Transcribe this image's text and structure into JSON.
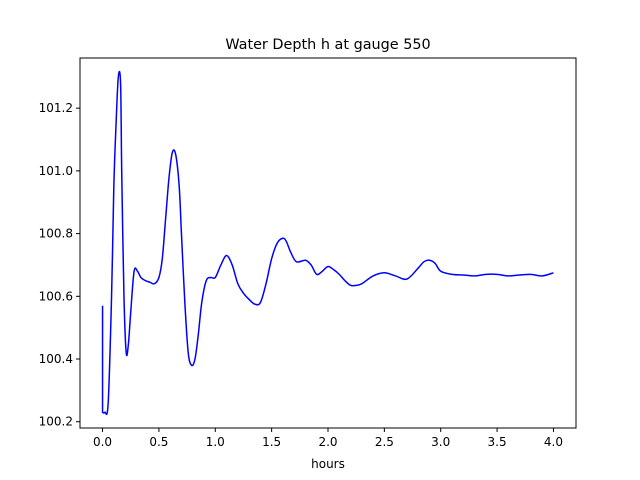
{
  "chart_data": {
    "type": "line",
    "title": "Water Depth h at gauge 550",
    "xlabel": "hours",
    "ylabel": "",
    "xlim": [
      -0.2,
      4.2
    ],
    "ylim": [
      100.18,
      101.36
    ],
    "xticks": [
      0.0,
      0.5,
      1.0,
      1.5,
      2.0,
      2.5,
      3.0,
      3.5,
      4.0
    ],
    "xtick_labels": [
      "0.0",
      "0.5",
      "1.0",
      "1.5",
      "2.0",
      "2.5",
      "3.0",
      "3.5",
      "4.0"
    ],
    "yticks": [
      100.2,
      100.4,
      100.6,
      100.8,
      101.0,
      101.2
    ],
    "ytick_labels": [
      "100.2",
      "100.4",
      "100.6",
      "100.8",
      "101.0",
      "101.2"
    ],
    "grid": false,
    "legend": "none",
    "series": [
      {
        "color": "#0000ff",
        "x": [
          0.0,
          0.0,
          0.02,
          0.05,
          0.08,
          0.1,
          0.12,
          0.14,
          0.16,
          0.17,
          0.19,
          0.21,
          0.23,
          0.25,
          0.28,
          0.31,
          0.34,
          0.38,
          0.42,
          0.46,
          0.5,
          0.53,
          0.56,
          0.59,
          0.62,
          0.65,
          0.68,
          0.7,
          0.73,
          0.76,
          0.79,
          0.82,
          0.85,
          0.88,
          0.92,
          0.96,
          1.0,
          1.05,
          1.1,
          1.15,
          1.2,
          1.25,
          1.3,
          1.35,
          1.4,
          1.45,
          1.5,
          1.55,
          1.6,
          1.63,
          1.67,
          1.72,
          1.8,
          1.85,
          1.9,
          1.95,
          2.0,
          2.05,
          2.1,
          2.15,
          2.2,
          2.25,
          2.3,
          2.4,
          2.5,
          2.6,
          2.7,
          2.8,
          2.85,
          2.9,
          2.95,
          3.0,
          3.1,
          3.2,
          3.3,
          3.4,
          3.5,
          3.6,
          3.7,
          3.8,
          3.9,
          4.0
        ],
        "y": [
          100.57,
          100.23,
          100.23,
          100.26,
          100.6,
          100.95,
          101.15,
          101.3,
          101.28,
          101.0,
          100.6,
          100.42,
          100.45,
          100.55,
          100.68,
          100.68,
          100.66,
          100.65,
          100.645,
          100.64,
          100.66,
          100.72,
          100.85,
          100.98,
          101.06,
          101.05,
          100.95,
          100.8,
          100.58,
          100.42,
          100.38,
          100.4,
          100.48,
          100.58,
          100.65,
          100.66,
          100.66,
          100.7,
          100.73,
          100.7,
          100.64,
          100.61,
          100.59,
          100.575,
          100.58,
          100.64,
          100.72,
          100.77,
          100.785,
          100.775,
          100.74,
          100.71,
          100.715,
          100.7,
          100.67,
          100.68,
          100.695,
          100.685,
          100.67,
          100.65,
          100.635,
          100.635,
          100.64,
          100.665,
          100.675,
          100.665,
          100.655,
          100.69,
          100.71,
          100.715,
          100.705,
          100.68,
          100.67,
          100.668,
          100.665,
          100.67,
          100.67,
          100.665,
          100.668,
          100.67,
          100.665,
          100.675
        ]
      }
    ]
  }
}
